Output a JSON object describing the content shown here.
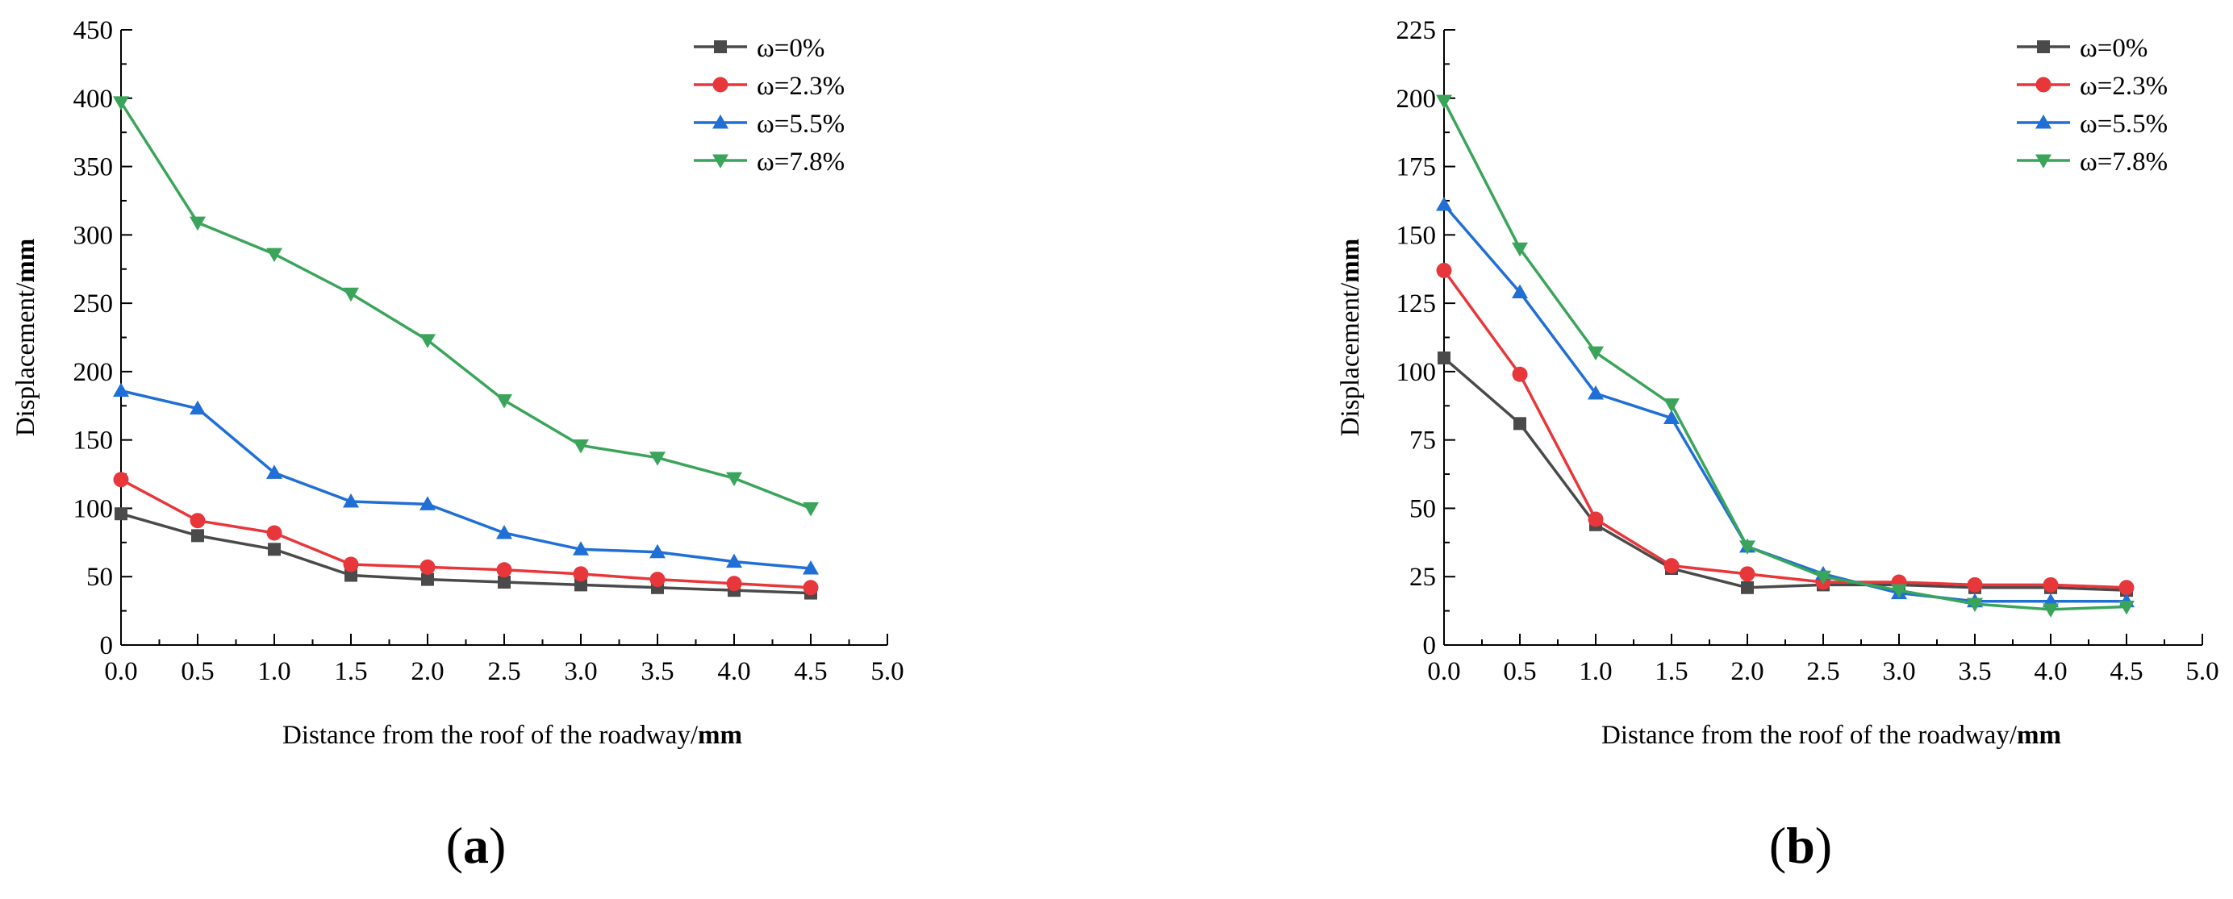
{
  "figure": {
    "panels": [
      "(a)",
      "(b)"
    ]
  },
  "chart_data": [
    {
      "type": "line",
      "panel_label": "(a)",
      "title": "",
      "xlabel_prefix": "Distance from the roof of the roadway/",
      "xlabel_unit": "mm",
      "ylabel_prefix": "Displacement/",
      "ylabel_unit": "mm",
      "xlim": [
        0,
        5
      ],
      "ylim": [
        0,
        450
      ],
      "x_ticks": [
        "0.0",
        "0.5",
        "1.0",
        "1.5",
        "2.0",
        "2.5",
        "3.0",
        "3.5",
        "4.0",
        "4.5",
        "5.0"
      ],
      "y_ticks": [
        "0",
        "50",
        "100",
        "150",
        "200",
        "250",
        "300",
        "350",
        "400",
        "450"
      ],
      "legend_position": "top-right",
      "x": [
        0,
        0.5,
        1.0,
        1.5,
        2.0,
        2.5,
        3.0,
        3.5,
        4.0,
        4.5
      ],
      "series": [
        {
          "name": "ω=0%",
          "color": "#4a4a4a",
          "marker": "square",
          "values": [
            96,
            80,
            70,
            51,
            48,
            46,
            44,
            42,
            40,
            38
          ]
        },
        {
          "name": "ω=2.3%",
          "color": "#e8373a",
          "marker": "circle",
          "values": [
            121,
            91,
            82,
            59,
            57,
            55,
            52,
            48,
            45,
            42
          ]
        },
        {
          "name": "ω=5.5%",
          "color": "#1f6fd6",
          "marker": "triangle-up",
          "values": [
            186,
            173,
            126,
            105,
            103,
            82,
            70,
            68,
            61,
            56
          ]
        },
        {
          "name": "ω=7.8%",
          "color": "#3aa55a",
          "marker": "triangle-down",
          "values": [
            397,
            309,
            286,
            257,
            223,
            179,
            146,
            137,
            122,
            100
          ]
        }
      ]
    },
    {
      "type": "line",
      "panel_label": "(b)",
      "title": "",
      "xlabel_prefix": "Distance from the roof of the roadway/",
      "xlabel_unit": "mm",
      "ylabel_prefix": "Displacement/",
      "ylabel_unit": "mm",
      "xlim": [
        0,
        5
      ],
      "ylim": [
        0,
        225
      ],
      "x_ticks": [
        "0.0",
        "0.5",
        "1.0",
        "1.5",
        "2.0",
        "2.5",
        "3.0",
        "3.5",
        "4.0",
        "4.5",
        "5.0"
      ],
      "y_ticks": [
        "0",
        "25",
        "50",
        "75",
        "100",
        "125",
        "150",
        "175",
        "200",
        "225"
      ],
      "legend_position": "top-right",
      "x": [
        0,
        0.5,
        1.0,
        1.5,
        2.0,
        2.5,
        3.0,
        3.5,
        4.0,
        4.5
      ],
      "series": [
        {
          "name": "ω=0%",
          "color": "#4a4a4a",
          "marker": "square",
          "values": [
            105,
            81,
            44,
            28,
            21,
            22,
            22,
            21,
            21,
            20
          ]
        },
        {
          "name": "ω=2.3%",
          "color": "#e8373a",
          "marker": "circle",
          "values": [
            137,
            99,
            46,
            29,
            26,
            23,
            23,
            22,
            22,
            21
          ]
        },
        {
          "name": "ω=5.5%",
          "color": "#1f6fd6",
          "marker": "triangle-up",
          "values": [
            161,
            129,
            92,
            83,
            36,
            26,
            19,
            16,
            16,
            16
          ]
        },
        {
          "name": "ω=7.8%",
          "color": "#3aa55a",
          "marker": "triangle-down",
          "values": [
            199,
            145,
            107,
            88,
            36,
            25,
            20,
            15,
            13,
            14
          ]
        }
      ]
    }
  ]
}
